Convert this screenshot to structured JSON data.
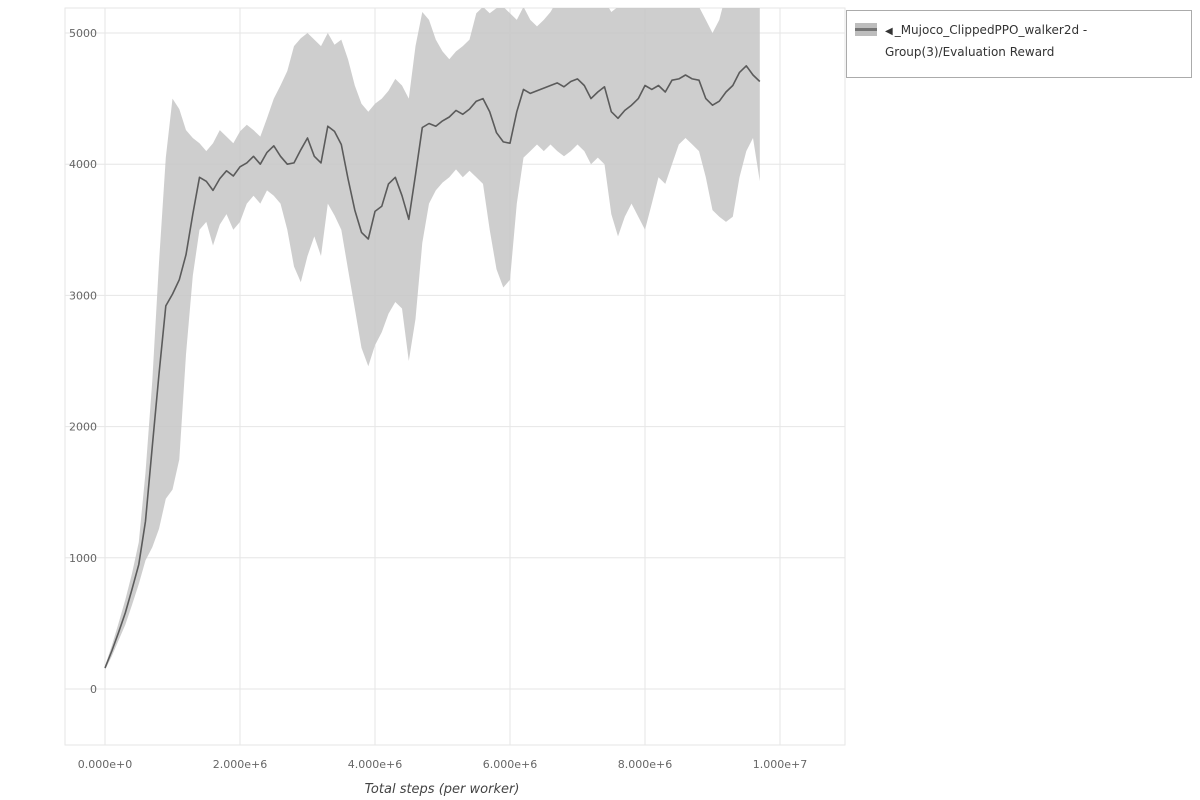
{
  "legend": {
    "collapse_icon": "◀",
    "label": "_Mujoco_ClippedPPO_walker2d - Group(3)/Evaluation Reward",
    "swatch_fill": "#bdbdbd",
    "swatch_line_color": "#757575"
  },
  "chart_data": {
    "type": "line",
    "title": "",
    "xlabel": "Total steps (per worker)",
    "ylabel": "",
    "legend_position": "top-right",
    "grid": true,
    "xlim": [
      0,
      10000000
    ],
    "ylim": [
      -430,
      5190
    ],
    "x_ticks": [
      0,
      2000000,
      4000000,
      6000000,
      8000000,
      10000000
    ],
    "x_tick_labels": [
      "0.000e+0",
      "2.000e+6",
      "4.000e+6",
      "6.000e+6",
      "8.000e+6",
      "1.000e+7"
    ],
    "y_ticks": [
      0,
      1000,
      2000,
      3000,
      4000,
      5000
    ],
    "y_tick_labels": [
      "0",
      "1000",
      "2000",
      "3000",
      "4000",
      "5000"
    ],
    "colors": {
      "line": "#5b5b5b",
      "band": "#c5c5c5",
      "grid": "#e6e6e6",
      "tick_text": "#666666",
      "xlabel_text": "#444444"
    },
    "series": [
      {
        "name": "_Mujoco_ClippedPPO_walker2d - Group(3)/Evaluation Reward",
        "x_unit_multiplier": 1000000,
        "x_e6": [
          0,
          0.1,
          0.2,
          0.3,
          0.4,
          0.5,
          0.6,
          0.7,
          0.8,
          0.9,
          1,
          1.1,
          1.2,
          1.3,
          1.4,
          1.5,
          1.6,
          1.7,
          1.8,
          1.9,
          2,
          2.1,
          2.2,
          2.3,
          2.4,
          2.5,
          2.6,
          2.7,
          2.8,
          2.9,
          3,
          3.1,
          3.2,
          3.3,
          3.4,
          3.5,
          3.6,
          3.7,
          3.8,
          3.9,
          4,
          4.1,
          4.2,
          4.3,
          4.4,
          4.5,
          4.6,
          4.7,
          4.8,
          4.9,
          5,
          5.1,
          5.2,
          5.3,
          5.4,
          5.5,
          5.6,
          5.7,
          5.8,
          5.9,
          6,
          6.1,
          6.2,
          6.3,
          6.4,
          6.5,
          6.6,
          6.7,
          6.8,
          6.9,
          7,
          7.1,
          7.2,
          7.3,
          7.4,
          7.5,
          7.6,
          7.7,
          7.8,
          7.9,
          8,
          8.1,
          8.2,
          8.3,
          8.4,
          8.5,
          8.6,
          8.7,
          8.8,
          8.9,
          9,
          9.1,
          9.2,
          9.3,
          9.4,
          9.5,
          9.6,
          9.7
        ],
        "mean": [
          160,
          290,
          430,
          580,
          760,
          950,
          1280,
          1850,
          2400,
          2920,
          3010,
          3120,
          3310,
          3620,
          3900,
          3870,
          3800,
          3890,
          3950,
          3910,
          3980,
          4010,
          4060,
          4000,
          4090,
          4140,
          4060,
          4000,
          4010,
          4110,
          4200,
          4060,
          4010,
          4290,
          4250,
          4150,
          3890,
          3650,
          3480,
          3430,
          3640,
          3680,
          3850,
          3900,
          3760,
          3580,
          3920,
          4280,
          4310,
          4290,
          4330,
          4360,
          4410,
          4380,
          4420,
          4480,
          4500,
          4400,
          4240,
          4170,
          4160,
          4400,
          4570,
          4540,
          4560,
          4580,
          4600,
          4620,
          4590,
          4630,
          4650,
          4600,
          4500,
          4550,
          4590,
          4400,
          4350,
          4410,
          4450,
          4500,
          4600,
          4570,
          4600,
          4550,
          4640,
          4650,
          4680,
          4650,
          4640,
          4500,
          4450,
          4480,
          4550,
          4600,
          4700,
          4750,
          4680,
          4630
        ],
        "upper": [
          175,
          330,
          500,
          680,
          880,
          1120,
          1650,
          2350,
          3250,
          4050,
          4500,
          4420,
          4260,
          4200,
          4160,
          4100,
          4160,
          4260,
          4210,
          4160,
          4250,
          4300,
          4260,
          4210,
          4350,
          4500,
          4600,
          4710,
          4900,
          4960,
          5000,
          4950,
          4900,
          5000,
          4910,
          4950,
          4800,
          4600,
          4460,
          4400,
          4460,
          4500,
          4560,
          4650,
          4600,
          4500,
          4900,
          5160,
          5100,
          4950,
          4860,
          4800,
          4860,
          4900,
          4950,
          5150,
          5200,
          5150,
          5190,
          5200,
          5150,
          5100,
          5200,
          5100,
          5050,
          5100,
          5160,
          5250,
          5290,
          5250,
          5260,
          5300,
          5250,
          5200,
          5250,
          5160,
          5200,
          5250,
          5300,
          5250,
          5300,
          5350,
          5300,
          5250,
          5300,
          5250,
          5300,
          5260,
          5200,
          5100,
          5000,
          5100,
          5300,
          5390,
          5350,
          5260,
          5300,
          5310
        ],
        "lower": [
          145,
          250,
          370,
          490,
          640,
          800,
          980,
          1080,
          1220,
          1450,
          1520,
          1750,
          2550,
          3150,
          3500,
          3560,
          3380,
          3540,
          3620,
          3500,
          3560,
          3700,
          3760,
          3700,
          3800,
          3760,
          3700,
          3500,
          3220,
          3100,
          3300,
          3450,
          3300,
          3700,
          3610,
          3500,
          3200,
          2900,
          2600,
          2460,
          2620,
          2720,
          2860,
          2950,
          2900,
          2500,
          2820,
          3400,
          3700,
          3800,
          3860,
          3900,
          3960,
          3900,
          3950,
          3900,
          3850,
          3500,
          3200,
          3060,
          3120,
          3700,
          4050,
          4100,
          4150,
          4100,
          4150,
          4100,
          4060,
          4100,
          4150,
          4100,
          4000,
          4050,
          4000,
          3620,
          3450,
          3600,
          3700,
          3600,
          3500,
          3700,
          3900,
          3850,
          4000,
          4150,
          4200,
          4150,
          4100,
          3900,
          3650,
          3600,
          3560,
          3600,
          3900,
          4100,
          4200,
          3870
        ]
      }
    ]
  }
}
